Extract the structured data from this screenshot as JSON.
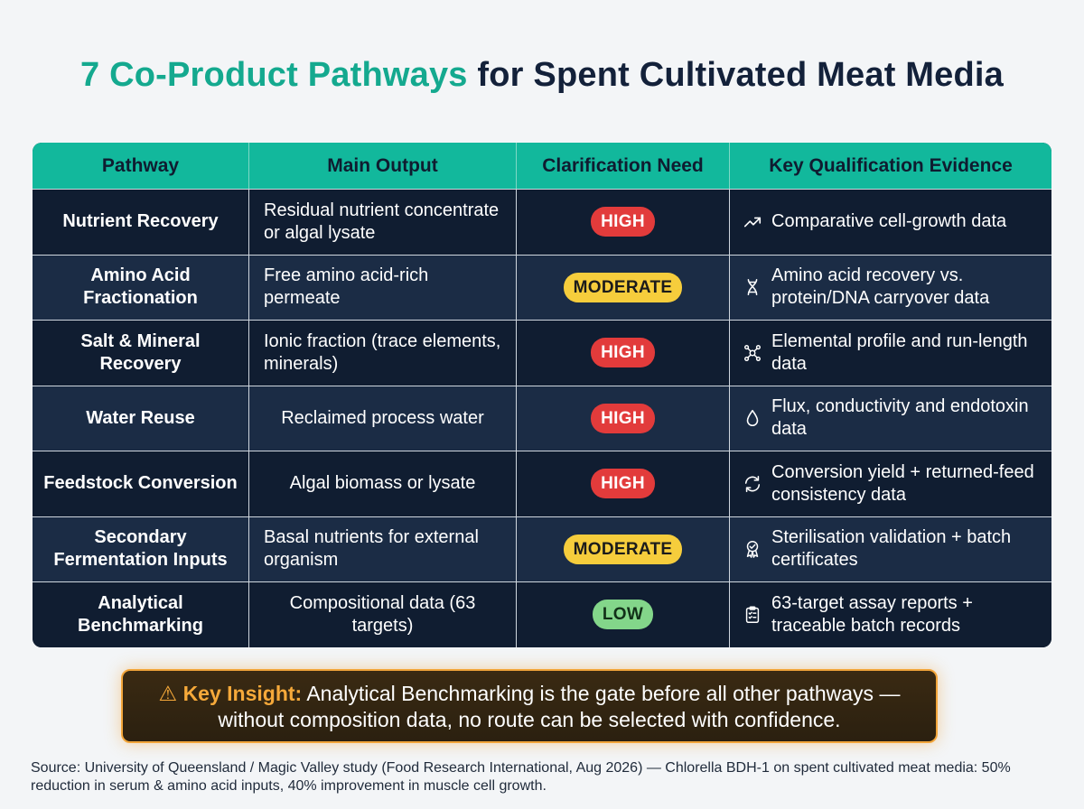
{
  "title": {
    "accent": "7 Co-Product Pathways",
    "rest": "for Spent Cultivated Meat Media"
  },
  "table": {
    "headers": [
      "Pathway",
      "Main Output",
      "Clarification Need",
      "Key Qualification Evidence"
    ],
    "rows": [
      {
        "pathway": "Nutrient Recovery",
        "output": "Residual nutrient concentrate or algal lysate",
        "need": "HIGH",
        "need_level": "high",
        "icon": "trend-up-icon",
        "evidence": "Comparative cell-growth data"
      },
      {
        "pathway": "Amino Acid Fractionation",
        "output": "Free amino acid-rich permeate",
        "need": "MODERATE",
        "need_level": "moderate",
        "icon": "dna-icon",
        "evidence": "Amino acid recovery vs. protein/DNA carryover data"
      },
      {
        "pathway": "Salt & Mineral Recovery",
        "output": "Ionic fraction (trace elements, minerals)",
        "need": "HIGH",
        "need_level": "high",
        "icon": "molecule-icon",
        "evidence": "Elemental profile and run-length data"
      },
      {
        "pathway": "Water Reuse",
        "output": "Reclaimed process water",
        "need": "HIGH",
        "need_level": "high",
        "icon": "water-drop-icon",
        "evidence": "Flux, conductivity and endotoxin data"
      },
      {
        "pathway": "Feedstock Conversion",
        "output": "Algal biomass or lysate",
        "need": "HIGH",
        "need_level": "high",
        "icon": "recycle-icon",
        "evidence": "Conversion yield + returned-feed consistency data"
      },
      {
        "pathway": "Secondary Fermentation Inputs",
        "output": "Basal nutrients for external organism",
        "need": "MODERATE",
        "need_level": "moderate",
        "icon": "certificate-icon",
        "evidence": "Sterilisation validation + batch certificates"
      },
      {
        "pathway": "Analytical Benchmarking",
        "output": "Compositional data (63 targets)",
        "need": "LOW",
        "need_level": "low",
        "icon": "clipboard-icon",
        "evidence": "63-target assay reports + traceable batch records"
      }
    ]
  },
  "insight": {
    "icon": "warning-icon",
    "glyph": "⚠",
    "lead": "Key Insight:",
    "text": "Analytical Benchmarking is the gate before all other pathways — without composition data, no route can be selected with confidence."
  },
  "source": "Source: University of Queensland / Magic Valley study (Food Research International, Aug 2026) — Chlorella BDH-1 on spent cultivated meat media: 50% reduction in serum & amino acid inputs, 40% improvement in muscle cell growth."
}
